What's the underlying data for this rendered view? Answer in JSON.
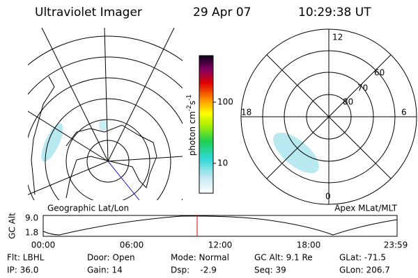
{
  "header": {
    "title": "Ultraviolet Imager",
    "date": "29 Apr 07",
    "time": "10:29:38 UT"
  },
  "colorbar": {
    "unit": "photon cm",
    "exp1": "-2",
    "unit2": "s",
    "exp2": "-1",
    "ticks": [
      "100",
      "10"
    ]
  },
  "left_map": {
    "label": "Geographic Lat/Lon"
  },
  "right_polar": {
    "label": "Apex MLat/MLT",
    "mlt": [
      "12",
      "18",
      "6",
      "0"
    ],
    "mlat": [
      "60",
      "70",
      "80"
    ]
  },
  "altitude_plot": {
    "ylabel": "GC Alt",
    "yticks": [
      "9.0",
      "1.8"
    ],
    "xticks": [
      "00:00",
      "06:00",
      "12:00",
      "18:00",
      "23:59"
    ]
  },
  "footer": {
    "rows": [
      [
        "Flt: LBHL",
        "Door: Open",
        "Mode: Normal",
        "GC Alt: 9.1 Re",
        "GLat: -71.5"
      ],
      [
        "IP: 36.0",
        "Gain: 14",
        "Dsp:    -2.9",
        "Seq: 39",
        "GLon: 206.7"
      ]
    ]
  }
}
